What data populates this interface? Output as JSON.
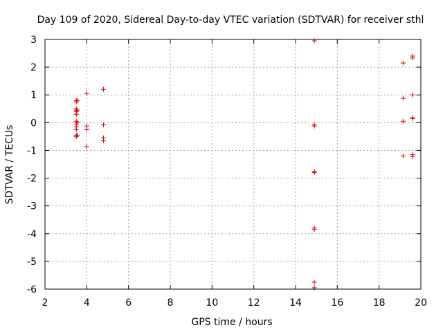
{
  "chart_data": {
    "type": "scatter",
    "title": "Day 109 of 2020, Sidereal Day-to-day VTEC variation (SDTVAR) for receiver sthl",
    "xlabel": "GPS time / hours",
    "ylabel": "SDTVAR / TECUs",
    "xlim": [
      2,
      20
    ],
    "ylim": [
      -6,
      3
    ],
    "xticks": [
      "2",
      "4",
      "6",
      "8",
      "10",
      "12",
      "14",
      "16",
      "18",
      "20"
    ],
    "yticks": [
      "-6",
      "-5",
      "-4",
      "-3",
      "-2",
      "-1",
      "0",
      "1",
      "2",
      "3"
    ],
    "grid": true,
    "legend": "none",
    "marker_color": "#cc0000",
    "marker": "plus",
    "points": [
      [
        3.5,
        0.8
      ],
      [
        3.5,
        0.75
      ],
      [
        3.5,
        0.5
      ],
      [
        3.5,
        0.45
      ],
      [
        3.5,
        0.4
      ],
      [
        3.5,
        0.3
      ],
      [
        3.5,
        0.05
      ],
      [
        3.5,
        -0.05
      ],
      [
        3.5,
        -0.15
      ],
      [
        3.5,
        -0.25
      ],
      [
        3.5,
        -0.45
      ],
      [
        3.5,
        -0.5
      ],
      [
        3.55,
        0.8
      ],
      [
        3.55,
        0.45
      ],
      [
        3.55,
        0.0
      ],
      [
        3.55,
        -0.45
      ],
      [
        4.0,
        1.05
      ],
      [
        4.0,
        -0.12
      ],
      [
        4.0,
        -0.25
      ],
      [
        4.0,
        -0.87
      ],
      [
        4.8,
        1.2
      ],
      [
        4.8,
        -0.08
      ],
      [
        4.8,
        -0.55
      ],
      [
        4.8,
        -0.65
      ],
      [
        14.9,
        2.95
      ],
      [
        14.9,
        -0.08
      ],
      [
        14.9,
        -0.12
      ],
      [
        14.9,
        -1.75
      ],
      [
        14.9,
        -1.8
      ],
      [
        14.9,
        -3.8
      ],
      [
        14.9,
        -3.85
      ],
      [
        14.9,
        -5.75
      ],
      [
        14.9,
        -5.95
      ],
      [
        19.15,
        2.15
      ],
      [
        19.15,
        0.88
      ],
      [
        19.15,
        0.05
      ],
      [
        19.15,
        -1.2
      ],
      [
        19.6,
        2.4
      ],
      [
        19.6,
        2.33
      ],
      [
        19.6,
        1.0
      ],
      [
        19.6,
        0.18
      ],
      [
        19.6,
        0.15
      ],
      [
        19.6,
        -1.15
      ],
      [
        19.6,
        -1.22
      ]
    ]
  }
}
